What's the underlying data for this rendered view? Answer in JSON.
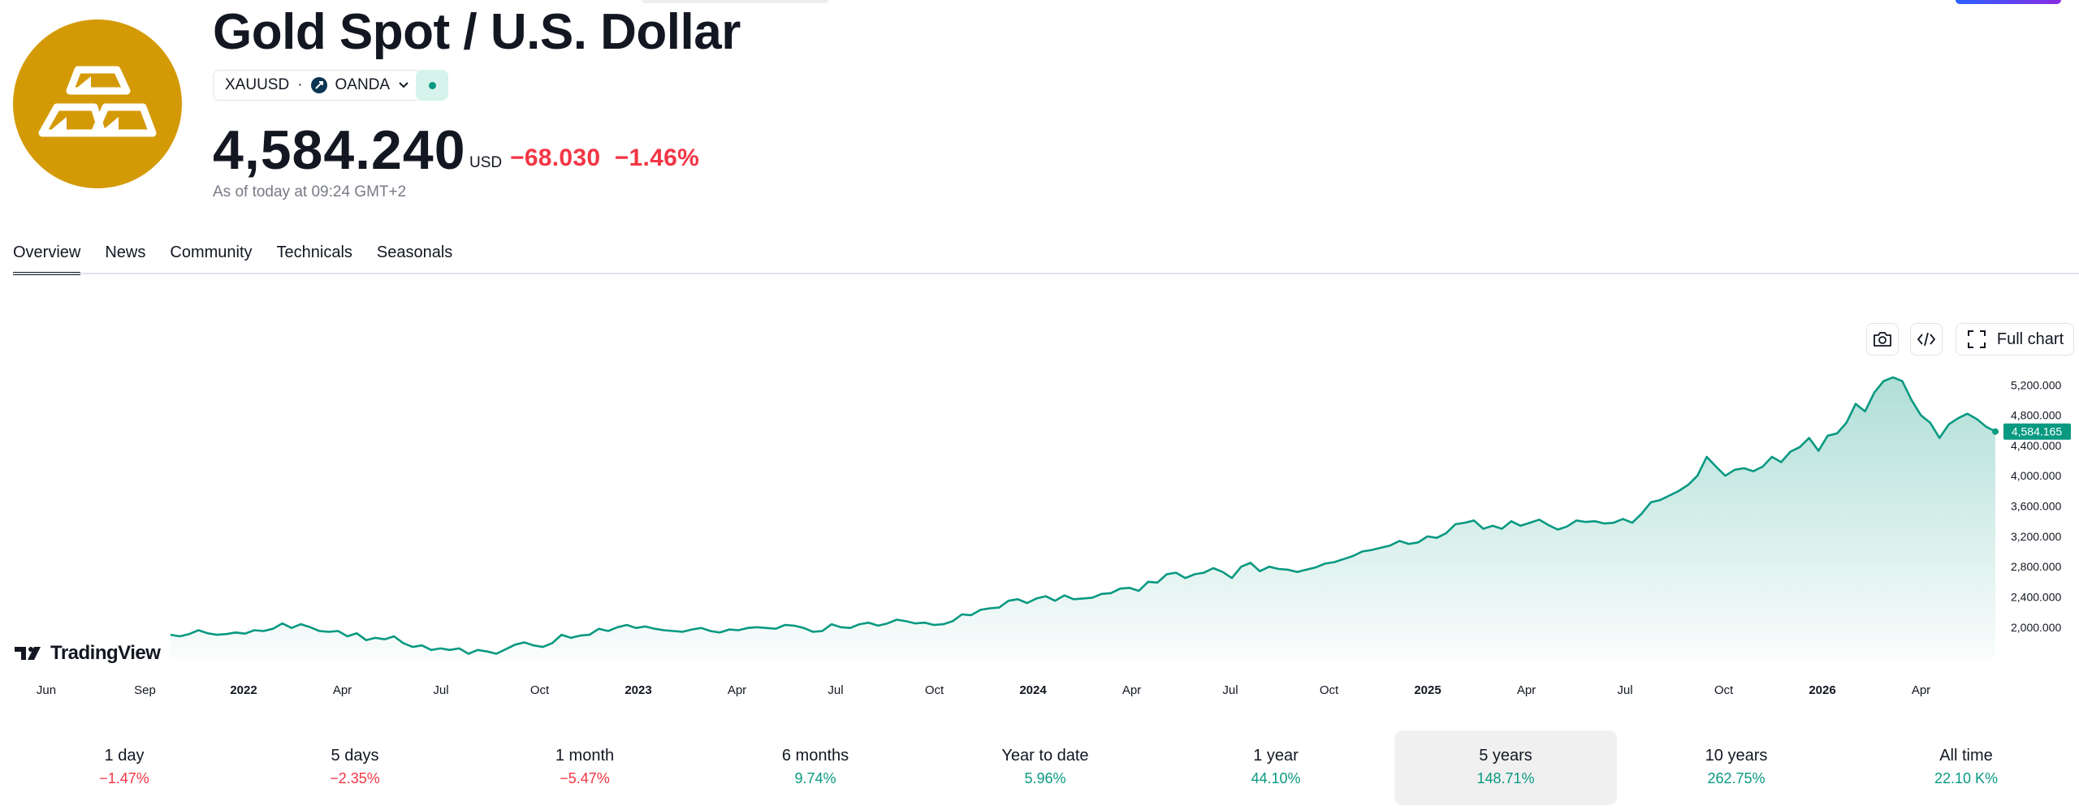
{
  "header": {
    "title": "Gold Spot / U.S. Dollar",
    "symbol": "XAUUSD",
    "separator": "·",
    "exchange": "OANDA",
    "price": "4,584.240",
    "currency": "USD",
    "change_abs": "−68.030",
    "change_pct": "−1.46%",
    "as_of": "As of today at 09:24 GMT+2"
  },
  "tabs": [
    {
      "label": "Overview",
      "active": true
    },
    {
      "label": "News"
    },
    {
      "label": "Community"
    },
    {
      "label": "Technicals"
    },
    {
      "label": "Seasonals"
    }
  ],
  "toolbar": {
    "full_chart_label": "Full chart",
    "icons": [
      "camera-icon",
      "embed-code-icon",
      "fullscreen-icon"
    ]
  },
  "brand": {
    "watermark": "TradingView"
  },
  "colors": {
    "accent": "#089981",
    "negative": "#f23645",
    "logo": "#d49a06"
  },
  "chart_data": {
    "type": "area",
    "series": [
      {
        "values": [
          1900,
          1880,
          1910,
          1960,
          1920,
          1900,
          1910,
          1930,
          1915,
          1960,
          1950,
          1980,
          2050,
          1990,
          2040,
          2000,
          1950,
          1940,
          1950,
          1880,
          1920,
          1830,
          1860,
          1840,
          1880,
          1790,
          1740,
          1760,
          1700,
          1720,
          1700,
          1720,
          1650,
          1700,
          1680,
          1650,
          1710,
          1770,
          1800,
          1760,
          1740,
          1790,
          1900,
          1860,
          1890,
          1900,
          1980,
          1950,
          2000,
          2030,
          1990,
          2010,
          1980,
          1960,
          1950,
          1940,
          1970,
          1990,
          1950,
          1930,
          1970,
          1960,
          1990,
          2000,
          1990,
          1980,
          2030,
          2020,
          1990,
          1940,
          1950,
          2040,
          2000,
          1990,
          2040,
          2060,
          2020,
          2050,
          2100,
          2080,
          2050,
          2060,
          2030,
          2040,
          2080,
          2170,
          2160,
          2230,
          2250,
          2260,
          2350,
          2370,
          2320,
          2380,
          2410,
          2350,
          2420,
          2370,
          2380,
          2390,
          2440,
          2450,
          2510,
          2520,
          2480,
          2600,
          2590,
          2700,
          2720,
          2650,
          2700,
          2720,
          2780,
          2730,
          2650,
          2800,
          2850,
          2740,
          2800,
          2770,
          2760,
          2730,
          2760,
          2790,
          2840,
          2860,
          2900,
          2940,
          3000,
          3020,
          3050,
          3080,
          3140,
          3100,
          3120,
          3200,
          3180,
          3240,
          3360,
          3380,
          3410,
          3300,
          3340,
          3300,
          3400,
          3340,
          3380,
          3420,
          3350,
          3290,
          3330,
          3410,
          3390,
          3400,
          3370,
          3380,
          3430,
          3380,
          3500,
          3650,
          3680,
          3740,
          3800,
          3880,
          4000,
          4250,
          4120,
          4000,
          4080,
          4100,
          4060,
          4120,
          4250,
          4180,
          4320,
          4380,
          4500,
          4330,
          4530,
          4560,
          4700,
          4950,
          4850,
          5100,
          5250,
          5300,
          5250,
          5000,
          4800,
          4700,
          4500,
          4680,
          4760,
          4820,
          4750,
          4650,
          4584
        ]
      }
    ],
    "x_ticks": [
      "Jun",
      "Sep",
      "2022",
      "Apr",
      "Jul",
      "Oct",
      "2023",
      "Apr",
      "Jul",
      "Oct",
      "2024",
      "Apr",
      "Jul",
      "Oct",
      "2025",
      "Apr",
      "Jul",
      "Oct",
      "2026",
      "Apr"
    ],
    "y_ticks": [
      "5,200.000",
      "4,800.000",
      "4,400.000",
      "4,000.000",
      "3,600.000",
      "3,200.000",
      "2,800.000",
      "2,400.000",
      "2,000.000"
    ],
    "ylim": [
      1580,
      5460
    ],
    "last_price_label": "4,584.165",
    "grid": false
  },
  "periods": [
    {
      "label": "1 day",
      "value": "−1.47%",
      "sign": "neg"
    },
    {
      "label": "5 days",
      "value": "−2.35%",
      "sign": "neg"
    },
    {
      "label": "1 month",
      "value": "−5.47%",
      "sign": "neg"
    },
    {
      "label": "6 months",
      "value": "9.74%",
      "sign": "pos"
    },
    {
      "label": "Year to date",
      "value": "5.96%",
      "sign": "pos"
    },
    {
      "label": "1 year",
      "value": "44.10%",
      "sign": "pos"
    },
    {
      "label": "5 years",
      "value": "148.71%",
      "sign": "pos",
      "active": true
    },
    {
      "label": "10 years",
      "value": "262.75%",
      "sign": "pos"
    },
    {
      "label": "All time",
      "value": "22.10 K%",
      "sign": "pos"
    }
  ]
}
